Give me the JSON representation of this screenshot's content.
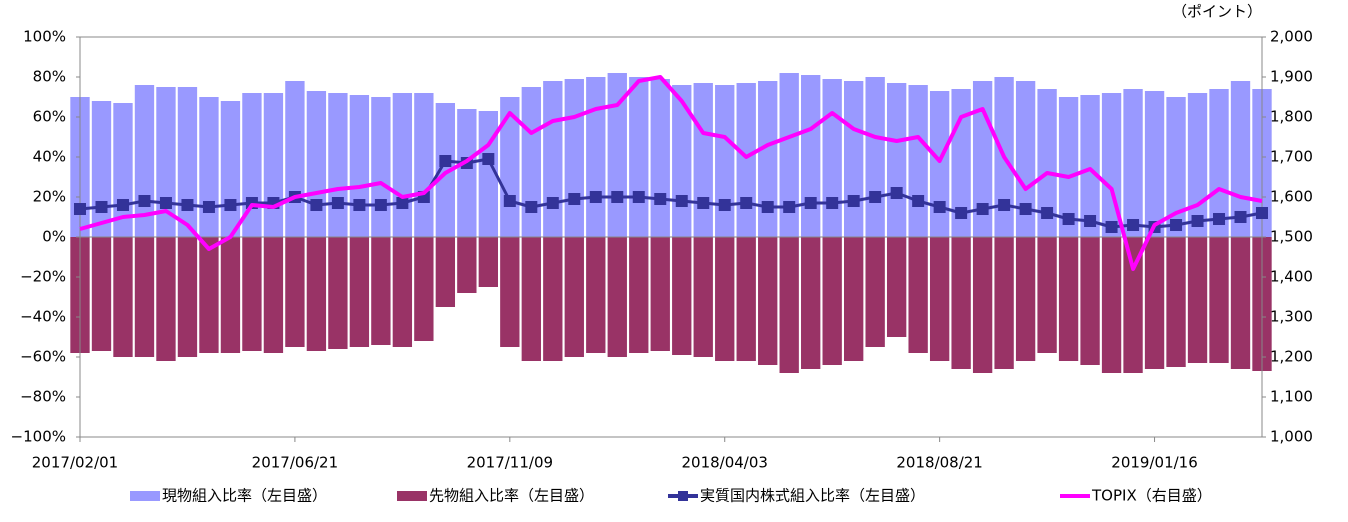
{
  "chart_data": {
    "type": "bar",
    "unit_label": "（ポイント）",
    "categories": [
      "2017/02/01",
      null,
      null,
      null,
      null,
      null,
      null,
      null,
      null,
      null,
      "2017/06/21",
      null,
      null,
      null,
      null,
      null,
      null,
      null,
      null,
      null,
      "2017/11/09",
      null,
      null,
      null,
      null,
      null,
      null,
      null,
      null,
      null,
      "2018/04/03",
      null,
      null,
      null,
      null,
      null,
      null,
      null,
      null,
      null,
      "2018/08/21",
      null,
      null,
      null,
      null,
      null,
      null,
      null,
      null,
      null,
      "2019/01/16",
      null,
      null,
      null,
      null,
      null
    ],
    "ylim": [
      -100,
      100
    ],
    "yticks": [
      {
        "value": -100,
        "label": "−100%"
      },
      {
        "value": -80,
        "label": "−80%"
      },
      {
        "value": -60,
        "label": "−60%"
      },
      {
        "value": -40,
        "label": "−40%"
      },
      {
        "value": -20,
        "label": "−20%"
      },
      {
        "value": 0,
        "label": "0%"
      },
      {
        "value": 20,
        "label": "20%"
      },
      {
        "value": 40,
        "label": "40%"
      },
      {
        "value": 60,
        "label": "60%"
      },
      {
        "value": 80,
        "label": "80%"
      },
      {
        "value": 100,
        "label": "100%"
      }
    ],
    "y2lim": [
      1000,
      2000
    ],
    "y2ticks": [
      {
        "value": 1000,
        "label": "1,000"
      },
      {
        "value": 1100,
        "label": "1,100"
      },
      {
        "value": 1200,
        "label": "1,200"
      },
      {
        "value": 1300,
        "label": "1,300"
      },
      {
        "value": 1400,
        "label": "1,400"
      },
      {
        "value": 1500,
        "label": "1,500"
      },
      {
        "value": 1600,
        "label": "1,600"
      },
      {
        "value": 1700,
        "label": "1,700"
      },
      {
        "value": 1800,
        "label": "1,800"
      },
      {
        "value": 1900,
        "label": "1,900"
      },
      {
        "value": 2000,
        "label": "2,000"
      }
    ],
    "series": [
      {
        "name": "現物組入比率（左目盛）",
        "type": "bar",
        "color": "#9999ff",
        "values": [
          70,
          68,
          67,
          76,
          75,
          75,
          70,
          68,
          72,
          72,
          78,
          73,
          72,
          71,
          70,
          72,
          72,
          67,
          64,
          63,
          70,
          75,
          78,
          79,
          80,
          82,
          80,
          79,
          76,
          77,
          76,
          77,
          78,
          82,
          81,
          79,
          78,
          80,
          77,
          76,
          73,
          74,
          78,
          80,
          78,
          74,
          70,
          71,
          72,
          74,
          73,
          70,
          72,
          74,
          78,
          74
        ]
      },
      {
        "name": "先物組入比率（左目盛）",
        "type": "bar",
        "color": "#993366",
        "values": [
          -58,
          -57,
          -60,
          -60,
          -62,
          -60,
          -58,
          -58,
          -57,
          -58,
          -55,
          -57,
          -56,
          -55,
          -54,
          -55,
          -52,
          -35,
          -28,
          -25,
          -55,
          -62,
          -62,
          -60,
          -58,
          -60,
          -58,
          -57,
          -59,
          -60,
          -62,
          -62,
          -64,
          -68,
          -66,
          -64,
          -62,
          -55,
          -50,
          -58,
          -62,
          -66,
          -68,
          -66,
          -62,
          -58,
          -62,
          -64,
          -68,
          -68,
          -66,
          -65,
          -63,
          -63,
          -66,
          -67
        ]
      },
      {
        "name": "実質国内株式組入比率（左目盛）",
        "type": "line",
        "marker": "square",
        "color": "#333399",
        "values": [
          14,
          15,
          16,
          18,
          17,
          16,
          15,
          16,
          17,
          17,
          20,
          16,
          17,
          16,
          16,
          17,
          20,
          38,
          37,
          39,
          18,
          15,
          17,
          19,
          20,
          20,
          20,
          19,
          18,
          17,
          16,
          17,
          15,
          15,
          17,
          17,
          18,
          20,
          22,
          18,
          15,
          12,
          14,
          16,
          14,
          12,
          9,
          8,
          5,
          6,
          5,
          6,
          8,
          9,
          10,
          12
        ]
      },
      {
        "name": "TOPIX（右目盛）",
        "type": "line",
        "axis": "y2",
        "color": "#ff00ff",
        "values": [
          1520,
          1535,
          1550,
          1555,
          1565,
          1530,
          1470,
          1500,
          1580,
          1575,
          1600,
          1610,
          1620,
          1625,
          1635,
          1600,
          1610,
          1660,
          1690,
          1730,
          1810,
          1760,
          1790,
          1800,
          1820,
          1830,
          1890,
          1900,
          1840,
          1760,
          1750,
          1700,
          1730,
          1750,
          1770,
          1810,
          1770,
          1750,
          1740,
          1750,
          1690,
          1800,
          1820,
          1700,
          1620,
          1660,
          1650,
          1670,
          1620,
          1420,
          1530,
          1560,
          1580,
          1620,
          1600,
          1590
        ]
      }
    ]
  }
}
